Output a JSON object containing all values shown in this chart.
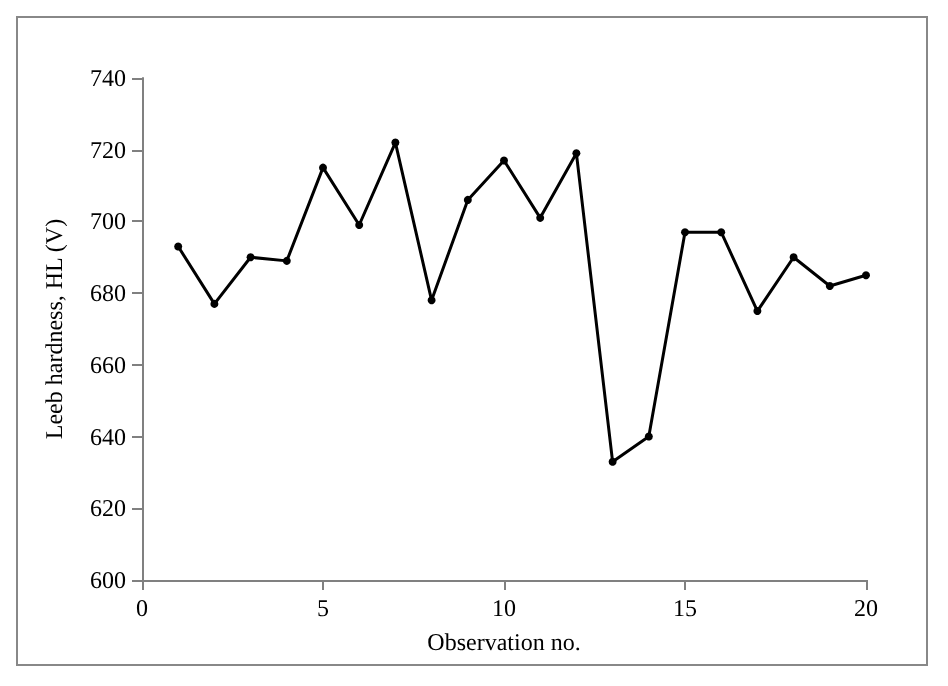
{
  "chart_data": {
    "type": "line",
    "xlabel": "Observation no.",
    "ylabel": "Leeb hardness, HL (V)",
    "x": [
      1,
      2,
      3,
      4,
      5,
      6,
      7,
      8,
      9,
      10,
      11,
      12,
      13,
      14,
      15,
      16,
      17,
      18,
      19,
      20
    ],
    "series": [
      {
        "color": "#000000",
        "values": [
          693,
          677,
          690,
          689,
          715,
          699,
          722,
          678,
          706,
          717,
          701,
          719,
          633,
          640,
          697,
          697,
          675,
          690,
          682,
          685
        ]
      }
    ],
    "xlim": [
      0,
      20
    ],
    "xticks": [
      0,
      5,
      10,
      15,
      20
    ],
    "ylim": [
      600,
      740
    ],
    "yticks": [
      600,
      620,
      640,
      660,
      680,
      700,
      720,
      740
    ],
    "grid": false,
    "marker": "circle",
    "line_style": "solid"
  }
}
